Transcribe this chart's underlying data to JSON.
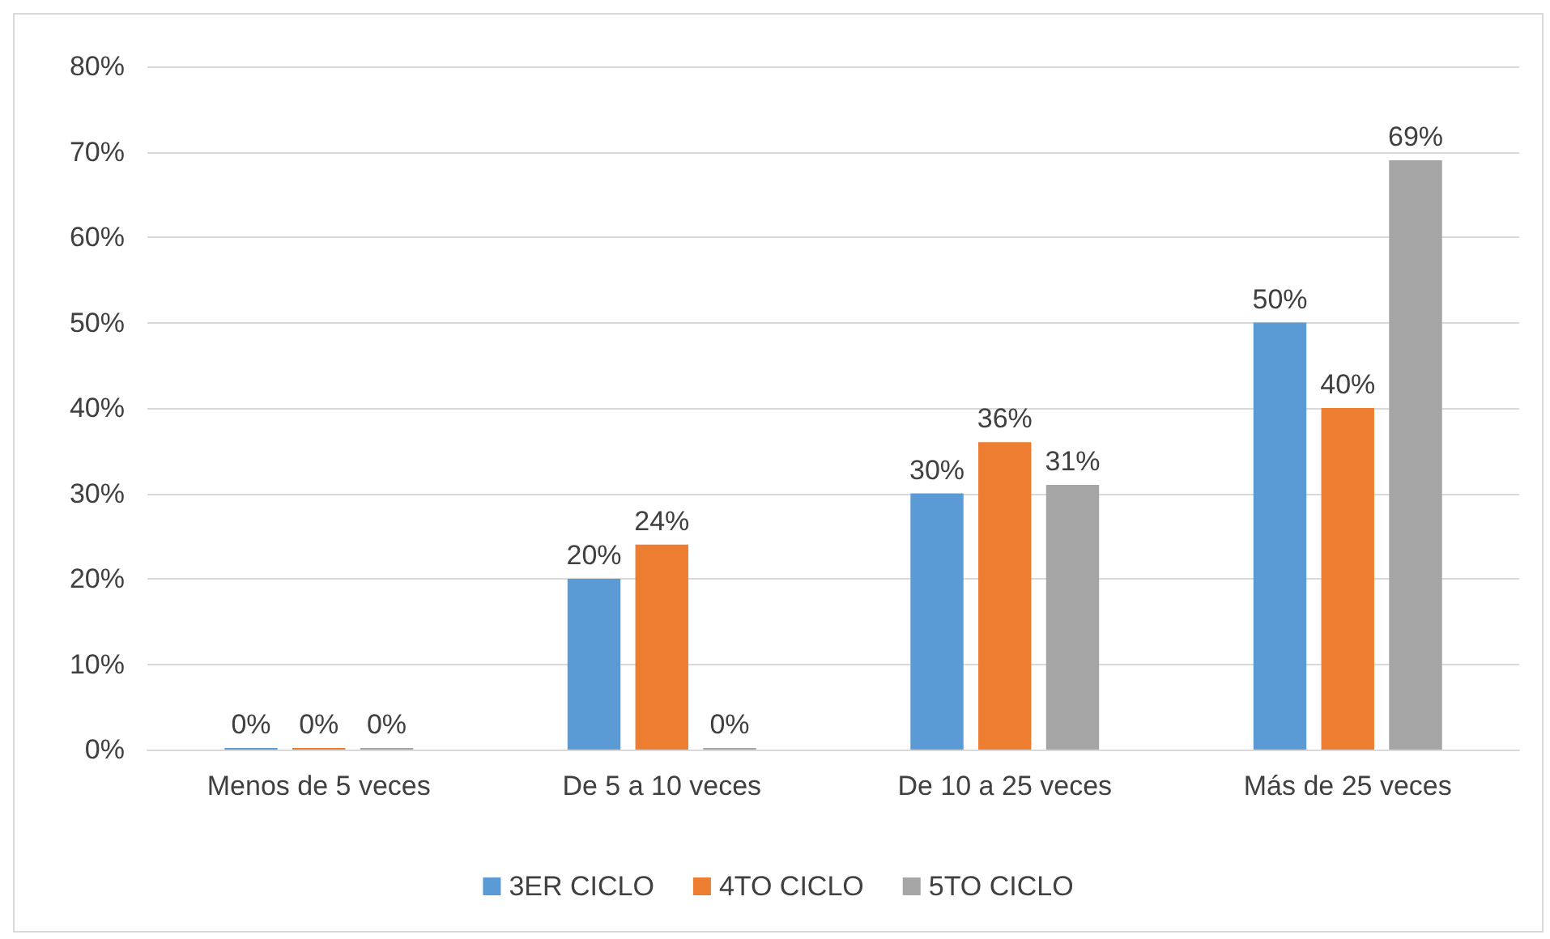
{
  "chart_data": {
    "type": "bar",
    "categories": [
      "Menos de 5 veces",
      "De 5 a 10 veces",
      "De 10 a 25 veces",
      "Más de 25 veces"
    ],
    "series": [
      {
        "name": "3ER CICLO",
        "color": "#5b9bd5",
        "values": [
          0,
          20,
          30,
          50
        ],
        "value_labels": [
          "0%",
          "20%",
          "30%",
          "50%"
        ]
      },
      {
        "name": "4TO CICLO",
        "color": "#ed7d31",
        "values": [
          0,
          24,
          36,
          40
        ],
        "value_labels": [
          "0%",
          "24%",
          "36%",
          "40%"
        ]
      },
      {
        "name": "5TO CICLO",
        "color": "#a5a5a5",
        "values": [
          0,
          0,
          31,
          69
        ],
        "value_labels": [
          "0%",
          "0%",
          "31%",
          "69%"
        ]
      }
    ],
    "ylim": [
      0,
      80
    ],
    "yticks": [
      {
        "value": 0,
        "label": "0%"
      },
      {
        "value": 10,
        "label": "10%"
      },
      {
        "value": 20,
        "label": "20%"
      },
      {
        "value": 30,
        "label": "30%"
      },
      {
        "value": 40,
        "label": "40%"
      },
      {
        "value": 50,
        "label": "50%"
      },
      {
        "value": 60,
        "label": "60%"
      },
      {
        "value": 70,
        "label": "70%"
      },
      {
        "value": 80,
        "label": "80%"
      }
    ],
    "grid": "y",
    "legend": "bottom"
  }
}
